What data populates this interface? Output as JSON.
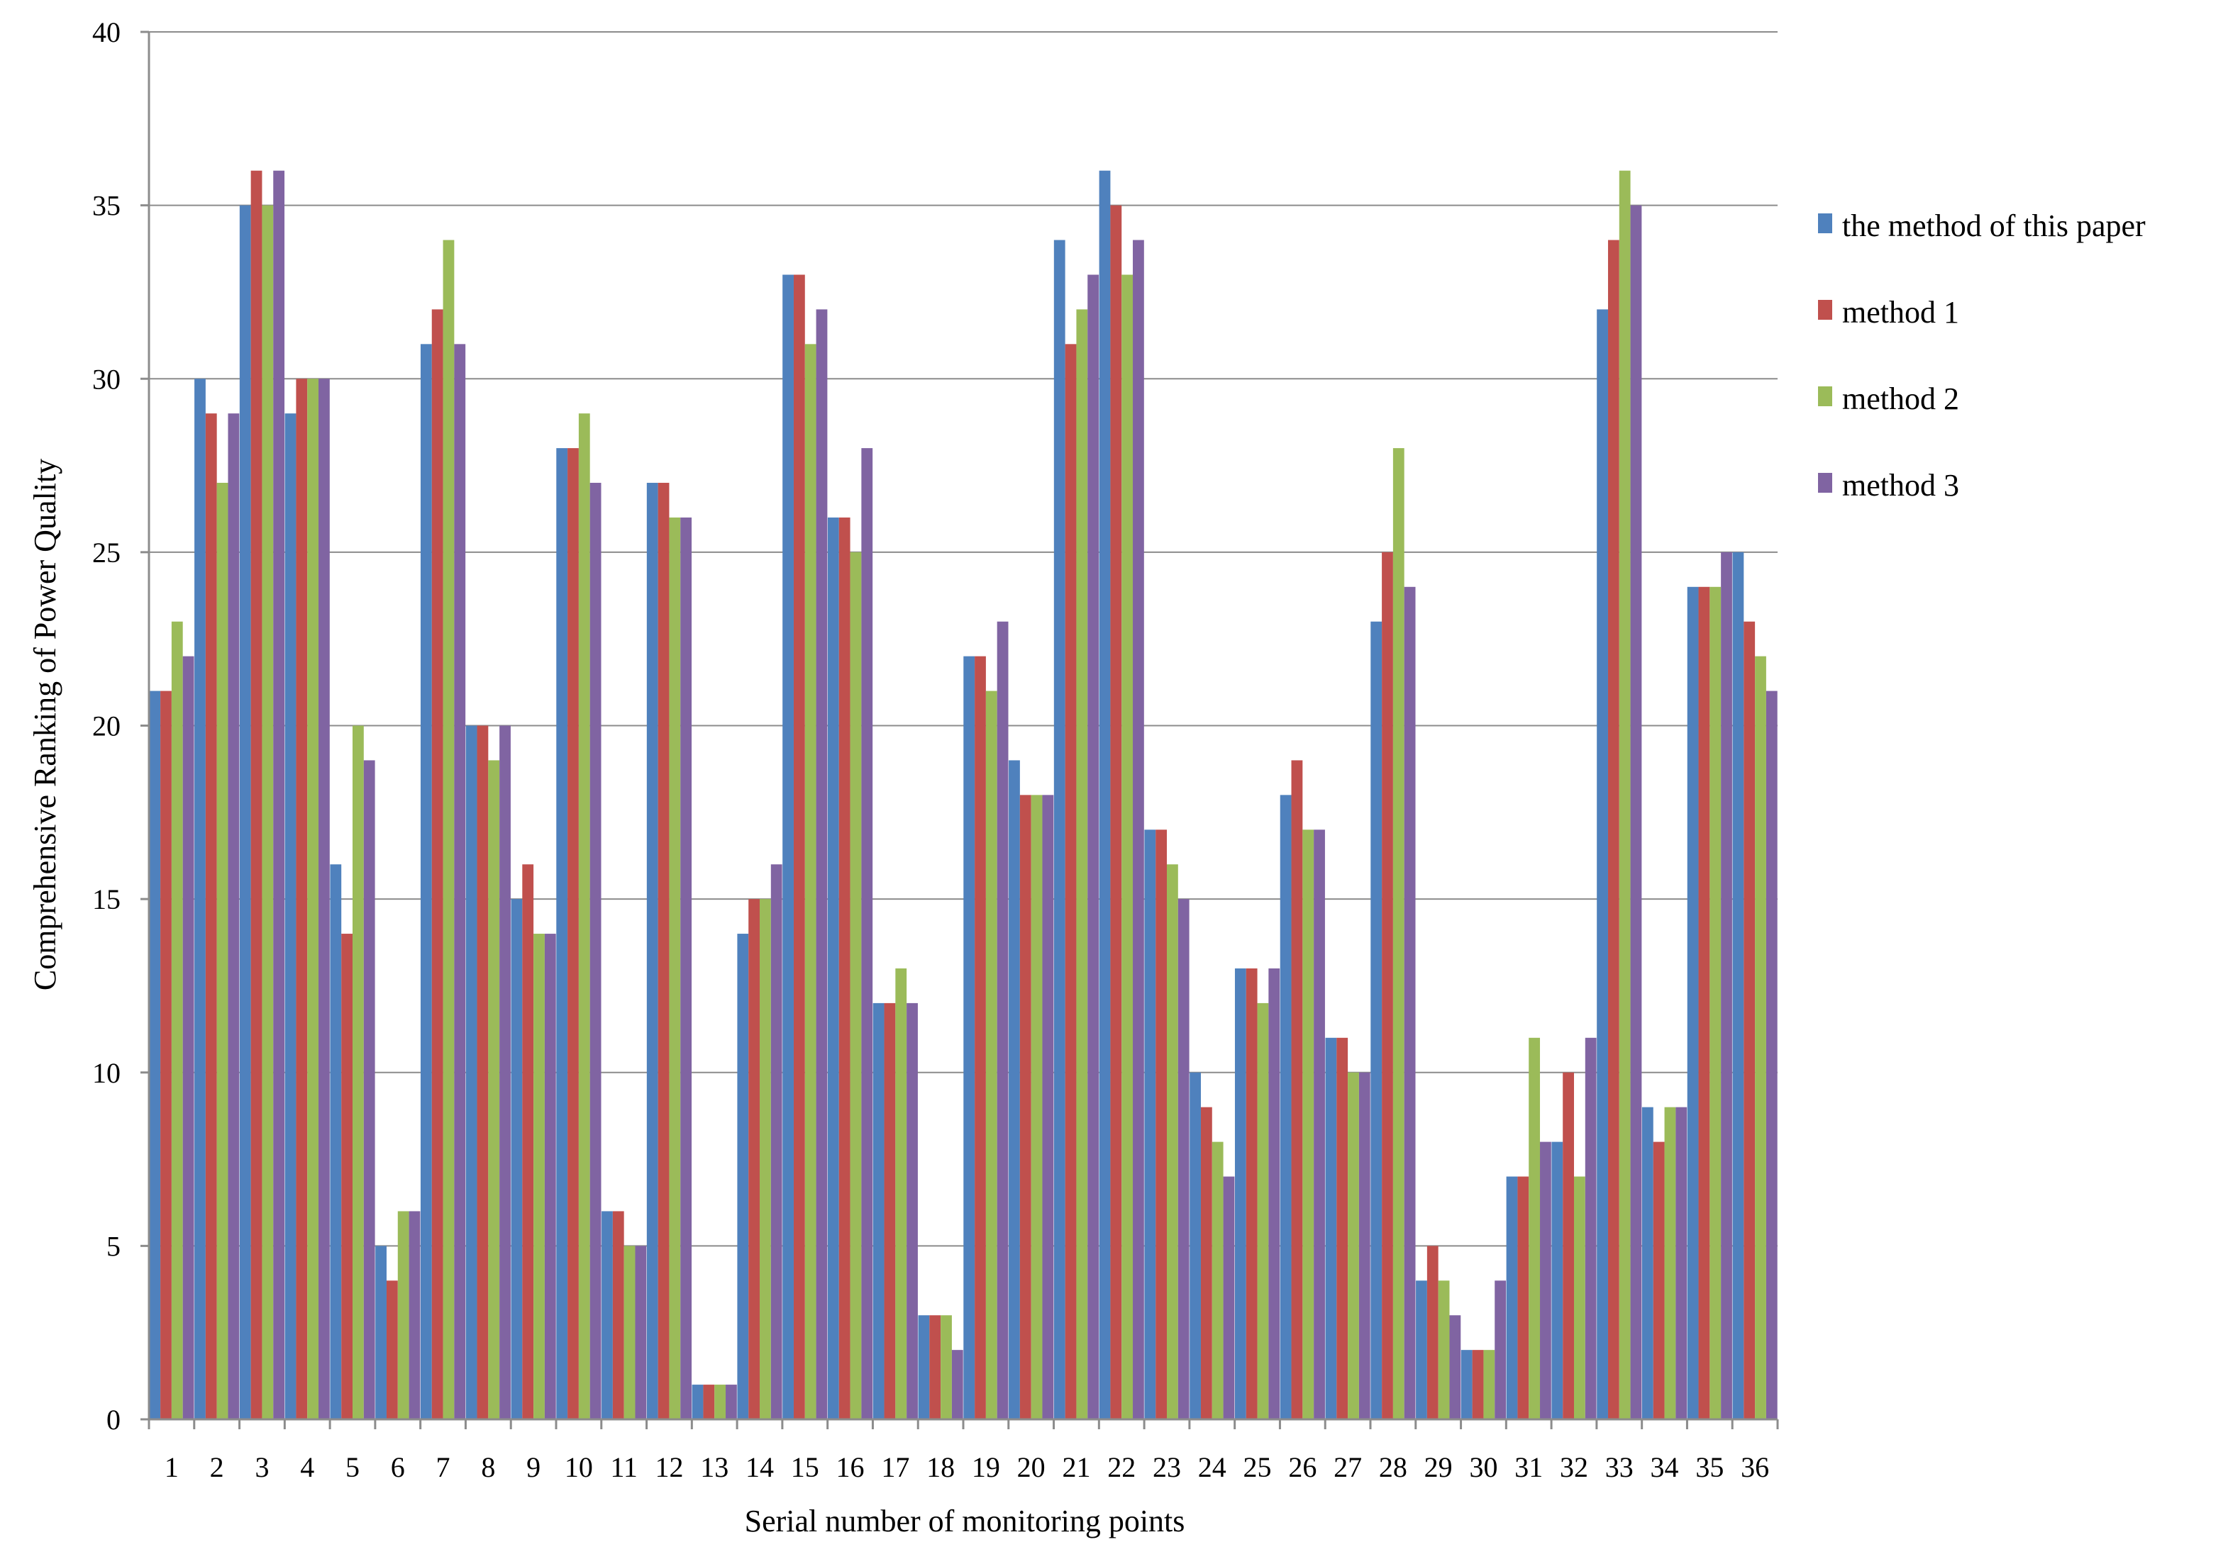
{
  "chart_data": {
    "type": "bar",
    "title": "",
    "xlabel": "Serial number of monitoring points",
    "ylabel": "Comprehensive Ranking of Power Quality",
    "ylim": [
      0,
      40
    ],
    "yticks": [
      0,
      5,
      10,
      15,
      20,
      25,
      30,
      35,
      40
    ],
    "grid": true,
    "legend_position": "right",
    "categories": [
      "1",
      "2",
      "3",
      "4",
      "5",
      "6",
      "7",
      "8",
      "9",
      "10",
      "11",
      "12",
      "13",
      "14",
      "15",
      "16",
      "17",
      "18",
      "19",
      "20",
      "21",
      "22",
      "23",
      "24",
      "25",
      "26",
      "27",
      "28",
      "29",
      "30",
      "31",
      "32",
      "33",
      "34",
      "35",
      "36"
    ],
    "series": [
      {
        "name": "the method of this paper",
        "color": "#4f81bd",
        "values": [
          21,
          30,
          35,
          29,
          16,
          5,
          31,
          20,
          15,
          28,
          6,
          27,
          1,
          14,
          33,
          26,
          12,
          3,
          22,
          19,
          34,
          36,
          17,
          10,
          13,
          18,
          11,
          23,
          4,
          2,
          7,
          8,
          32,
          9,
          24,
          25
        ]
      },
      {
        "name": "method 1",
        "color": "#c0504d",
        "values": [
          21,
          29,
          36,
          30,
          14,
          4,
          32,
          20,
          16,
          28,
          6,
          27,
          1,
          15,
          33,
          26,
          12,
          3,
          22,
          18,
          31,
          35,
          17,
          9,
          13,
          19,
          11,
          25,
          5,
          2,
          7,
          10,
          34,
          8,
          24,
          23
        ]
      },
      {
        "name": "method 2",
        "color": "#9bbb59",
        "values": [
          23,
          27,
          35,
          30,
          20,
          6,
          34,
          19,
          14,
          29,
          5,
          26,
          1,
          15,
          31,
          25,
          13,
          3,
          21,
          18,
          32,
          33,
          16,
          8,
          12,
          17,
          10,
          28,
          4,
          2,
          11,
          7,
          36,
          9,
          24,
          22
        ]
      },
      {
        "name": "method 3",
        "color": "#8064a2",
        "values": [
          22,
          29,
          36,
          30,
          19,
          6,
          31,
          20,
          14,
          27,
          5,
          26,
          1,
          16,
          32,
          28,
          12,
          2,
          23,
          18,
          33,
          34,
          15,
          7,
          13,
          17,
          10,
          24,
          3,
          4,
          8,
          11,
          35,
          9,
          25,
          21
        ]
      }
    ]
  }
}
